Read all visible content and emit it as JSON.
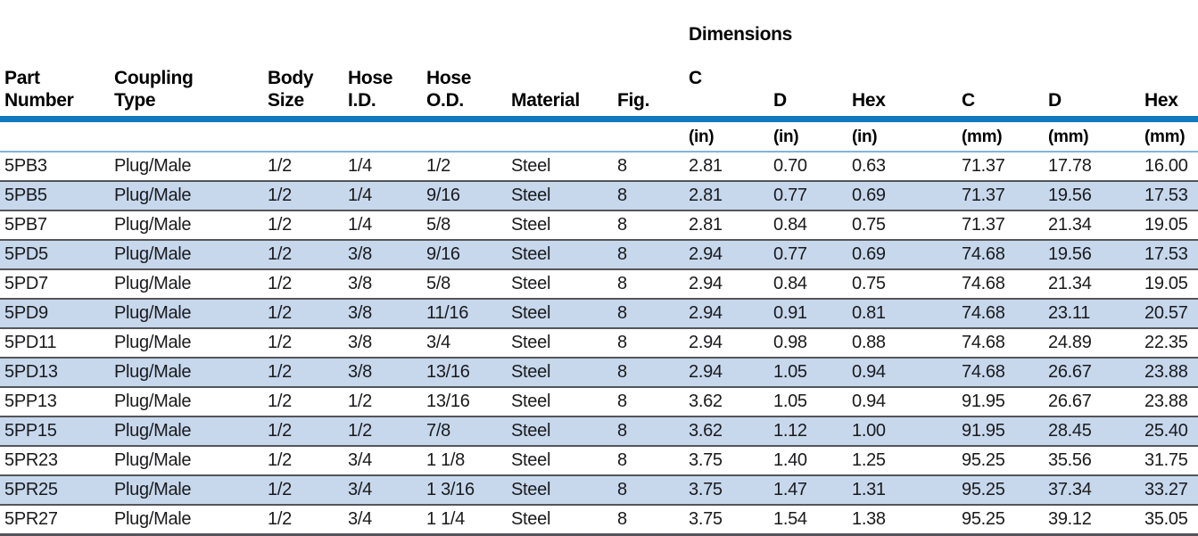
{
  "colors": {
    "accent_blue": "#1279BF",
    "row_alt_blue": "#C7D8ED",
    "separator_dark": "#54555A",
    "units_underline_blue": "#7FB5DB",
    "bar_under_edge": "#A9D4EC",
    "text_dark": "#1A1A1C"
  },
  "table": {
    "dimensions_label": "Dimensions",
    "headers": [
      "Part\nNumber",
      "Coupling\nType",
      "Body\nSize",
      "Hose\nI.D.",
      "Hose\nO.D.",
      "Material",
      "Fig.",
      "C",
      "D",
      "Hex",
      "C",
      "D",
      "Hex"
    ],
    "units": [
      "",
      "",
      "",
      "",
      "",
      "",
      "",
      "(in)",
      "(in)",
      "(in)",
      "(mm)",
      "(mm)",
      "(mm)"
    ],
    "column_keys": [
      "part-number",
      "coupling-type",
      "body-size",
      "hose-id",
      "hose-od",
      "material",
      "fig",
      "c-in",
      "d-in",
      "hex-in",
      "c-mm",
      "d-mm",
      "hex-mm"
    ],
    "rows": [
      [
        "5PB3",
        "Plug/Male",
        "1/2",
        "1/4",
        "1/2",
        "Steel",
        "8",
        "2.81",
        "0.70",
        "0.63",
        "71.37",
        "17.78",
        "16.00"
      ],
      [
        "5PB5",
        "Plug/Male",
        "1/2",
        "1/4",
        "9/16",
        "Steel",
        "8",
        "2.81",
        "0.77",
        "0.69",
        "71.37",
        "19.56",
        "17.53"
      ],
      [
        "5PB7",
        "Plug/Male",
        "1/2",
        "1/4",
        "5/8",
        "Steel",
        "8",
        "2.81",
        "0.84",
        "0.75",
        "71.37",
        "21.34",
        "19.05"
      ],
      [
        "5PD5",
        "Plug/Male",
        "1/2",
        "3/8",
        "9/16",
        "Steel",
        "8",
        "2.94",
        "0.77",
        "0.69",
        "74.68",
        "19.56",
        "17.53"
      ],
      [
        "5PD7",
        "Plug/Male",
        "1/2",
        "3/8",
        "5/8",
        "Steel",
        "8",
        "2.94",
        "0.84",
        "0.75",
        "74.68",
        "21.34",
        "19.05"
      ],
      [
        "5PD9",
        "Plug/Male",
        "1/2",
        "3/8",
        "11/16",
        "Steel",
        "8",
        "2.94",
        "0.91",
        "0.81",
        "74.68",
        "23.11",
        "20.57"
      ],
      [
        "5PD11",
        "Plug/Male",
        "1/2",
        "3/8",
        "3/4",
        "Steel",
        "8",
        "2.94",
        "0.98",
        "0.88",
        "74.68",
        "24.89",
        "22.35"
      ],
      [
        "5PD13",
        "Plug/Male",
        "1/2",
        "3/8",
        "13/16",
        "Steel",
        "8",
        "2.94",
        "1.05",
        "0.94",
        "74.68",
        "26.67",
        "23.88"
      ],
      [
        "5PP13",
        "Plug/Male",
        "1/2",
        "1/2",
        "13/16",
        "Steel",
        "8",
        "3.62",
        "1.05",
        "0.94",
        "91.95",
        "26.67",
        "23.88"
      ],
      [
        "5PP15",
        "Plug/Male",
        "1/2",
        "1/2",
        "7/8",
        "Steel",
        "8",
        "3.62",
        "1.12",
        "1.00",
        "91.95",
        "28.45",
        "25.40"
      ],
      [
        "5PR23",
        "Plug/Male",
        "1/2",
        "3/4",
        "1 1/8",
        "Steel",
        "8",
        "3.75",
        "1.40",
        "1.25",
        "95.25",
        "35.56",
        "31.75"
      ],
      [
        "5PR25",
        "Plug/Male",
        "1/2",
        "3/4",
        "1 3/16",
        "Steel",
        "8",
        "3.75",
        "1.47",
        "1.31",
        "95.25",
        "37.34",
        "33.27"
      ],
      [
        "5PR27",
        "Plug/Male",
        "1/2",
        "3/4",
        "1 1/4",
        "Steel",
        "8",
        "3.75",
        "1.54",
        "1.38",
        "95.25",
        "39.12",
        "35.05"
      ]
    ]
  }
}
